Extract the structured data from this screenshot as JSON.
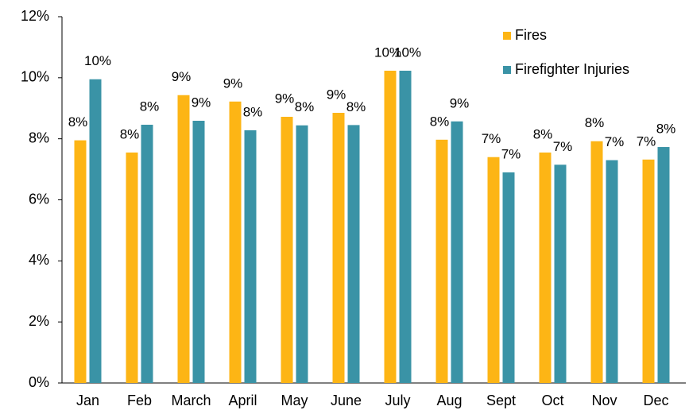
{
  "chart_data": {
    "type": "bar",
    "categories": [
      "Jan",
      "Feb",
      "March",
      "April",
      "May",
      "June",
      "July",
      "Aug",
      "Sept",
      "Oct",
      "Nov",
      "Dec"
    ],
    "series": [
      {
        "name": "Fires",
        "color": "#fdb515",
        "values": [
          7.95,
          7.55,
          9.43,
          9.22,
          8.72,
          8.85,
          10.23,
          7.97,
          7.4,
          7.55,
          7.92,
          7.32
        ],
        "value_labels": [
          "8%",
          "8%",
          "9%",
          "9%",
          "9%",
          "9%",
          "10%",
          "8%",
          "7%",
          "8%",
          "8%",
          "7%"
        ]
      },
      {
        "name": "Firefighter Injuries",
        "color": "#3a93a6",
        "values": [
          9.95,
          8.46,
          8.59,
          8.28,
          8.44,
          8.45,
          10.23,
          8.57,
          6.9,
          7.15,
          7.3,
          7.73
        ],
        "value_labels": [
          "10%",
          "8%",
          "9%",
          "8%",
          "8%",
          "8%",
          "10%",
          "9%",
          "7%",
          "7%",
          "7%",
          "8%"
        ]
      }
    ],
    "ylim": [
      0,
      12
    ],
    "yticks": [
      {
        "value": 0,
        "label": "0%"
      },
      {
        "value": 2,
        "label": "2%"
      },
      {
        "value": 4,
        "label": "4%"
      },
      {
        "value": 6,
        "label": "6%"
      },
      {
        "value": 8,
        "label": "8%"
      },
      {
        "value": 10,
        "label": "10%"
      },
      {
        "value": 12,
        "label": "12%"
      }
    ],
    "grid": false,
    "legend": "top-right"
  }
}
